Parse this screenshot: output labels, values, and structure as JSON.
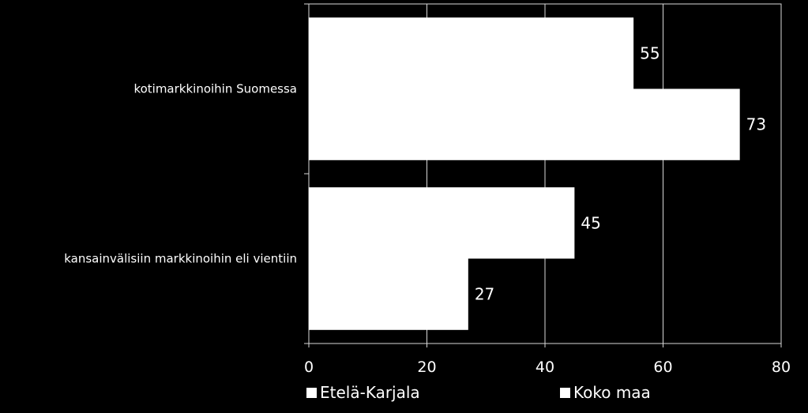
{
  "chart_data": {
    "type": "bar",
    "orientation": "horizontal",
    "title": "",
    "xlabel": "",
    "ylabel": "",
    "categories": [
      "kotimarkkinoihin Suomessa",
      "kansainvälisiin markkinoihin eli vientiin"
    ],
    "series": [
      {
        "name": "Etelä-Karjala",
        "values": [
          55,
          45
        ],
        "color": "#ffffff"
      },
      {
        "name": "Koko maa",
        "values": [
          73,
          27
        ],
        "color": "#ffffff"
      }
    ],
    "xlim": [
      0,
      80
    ],
    "xticks": [
      "0",
      "20",
      "40",
      "60",
      "80"
    ],
    "grid": true,
    "legend_position": "bottom",
    "background": "#000000"
  }
}
